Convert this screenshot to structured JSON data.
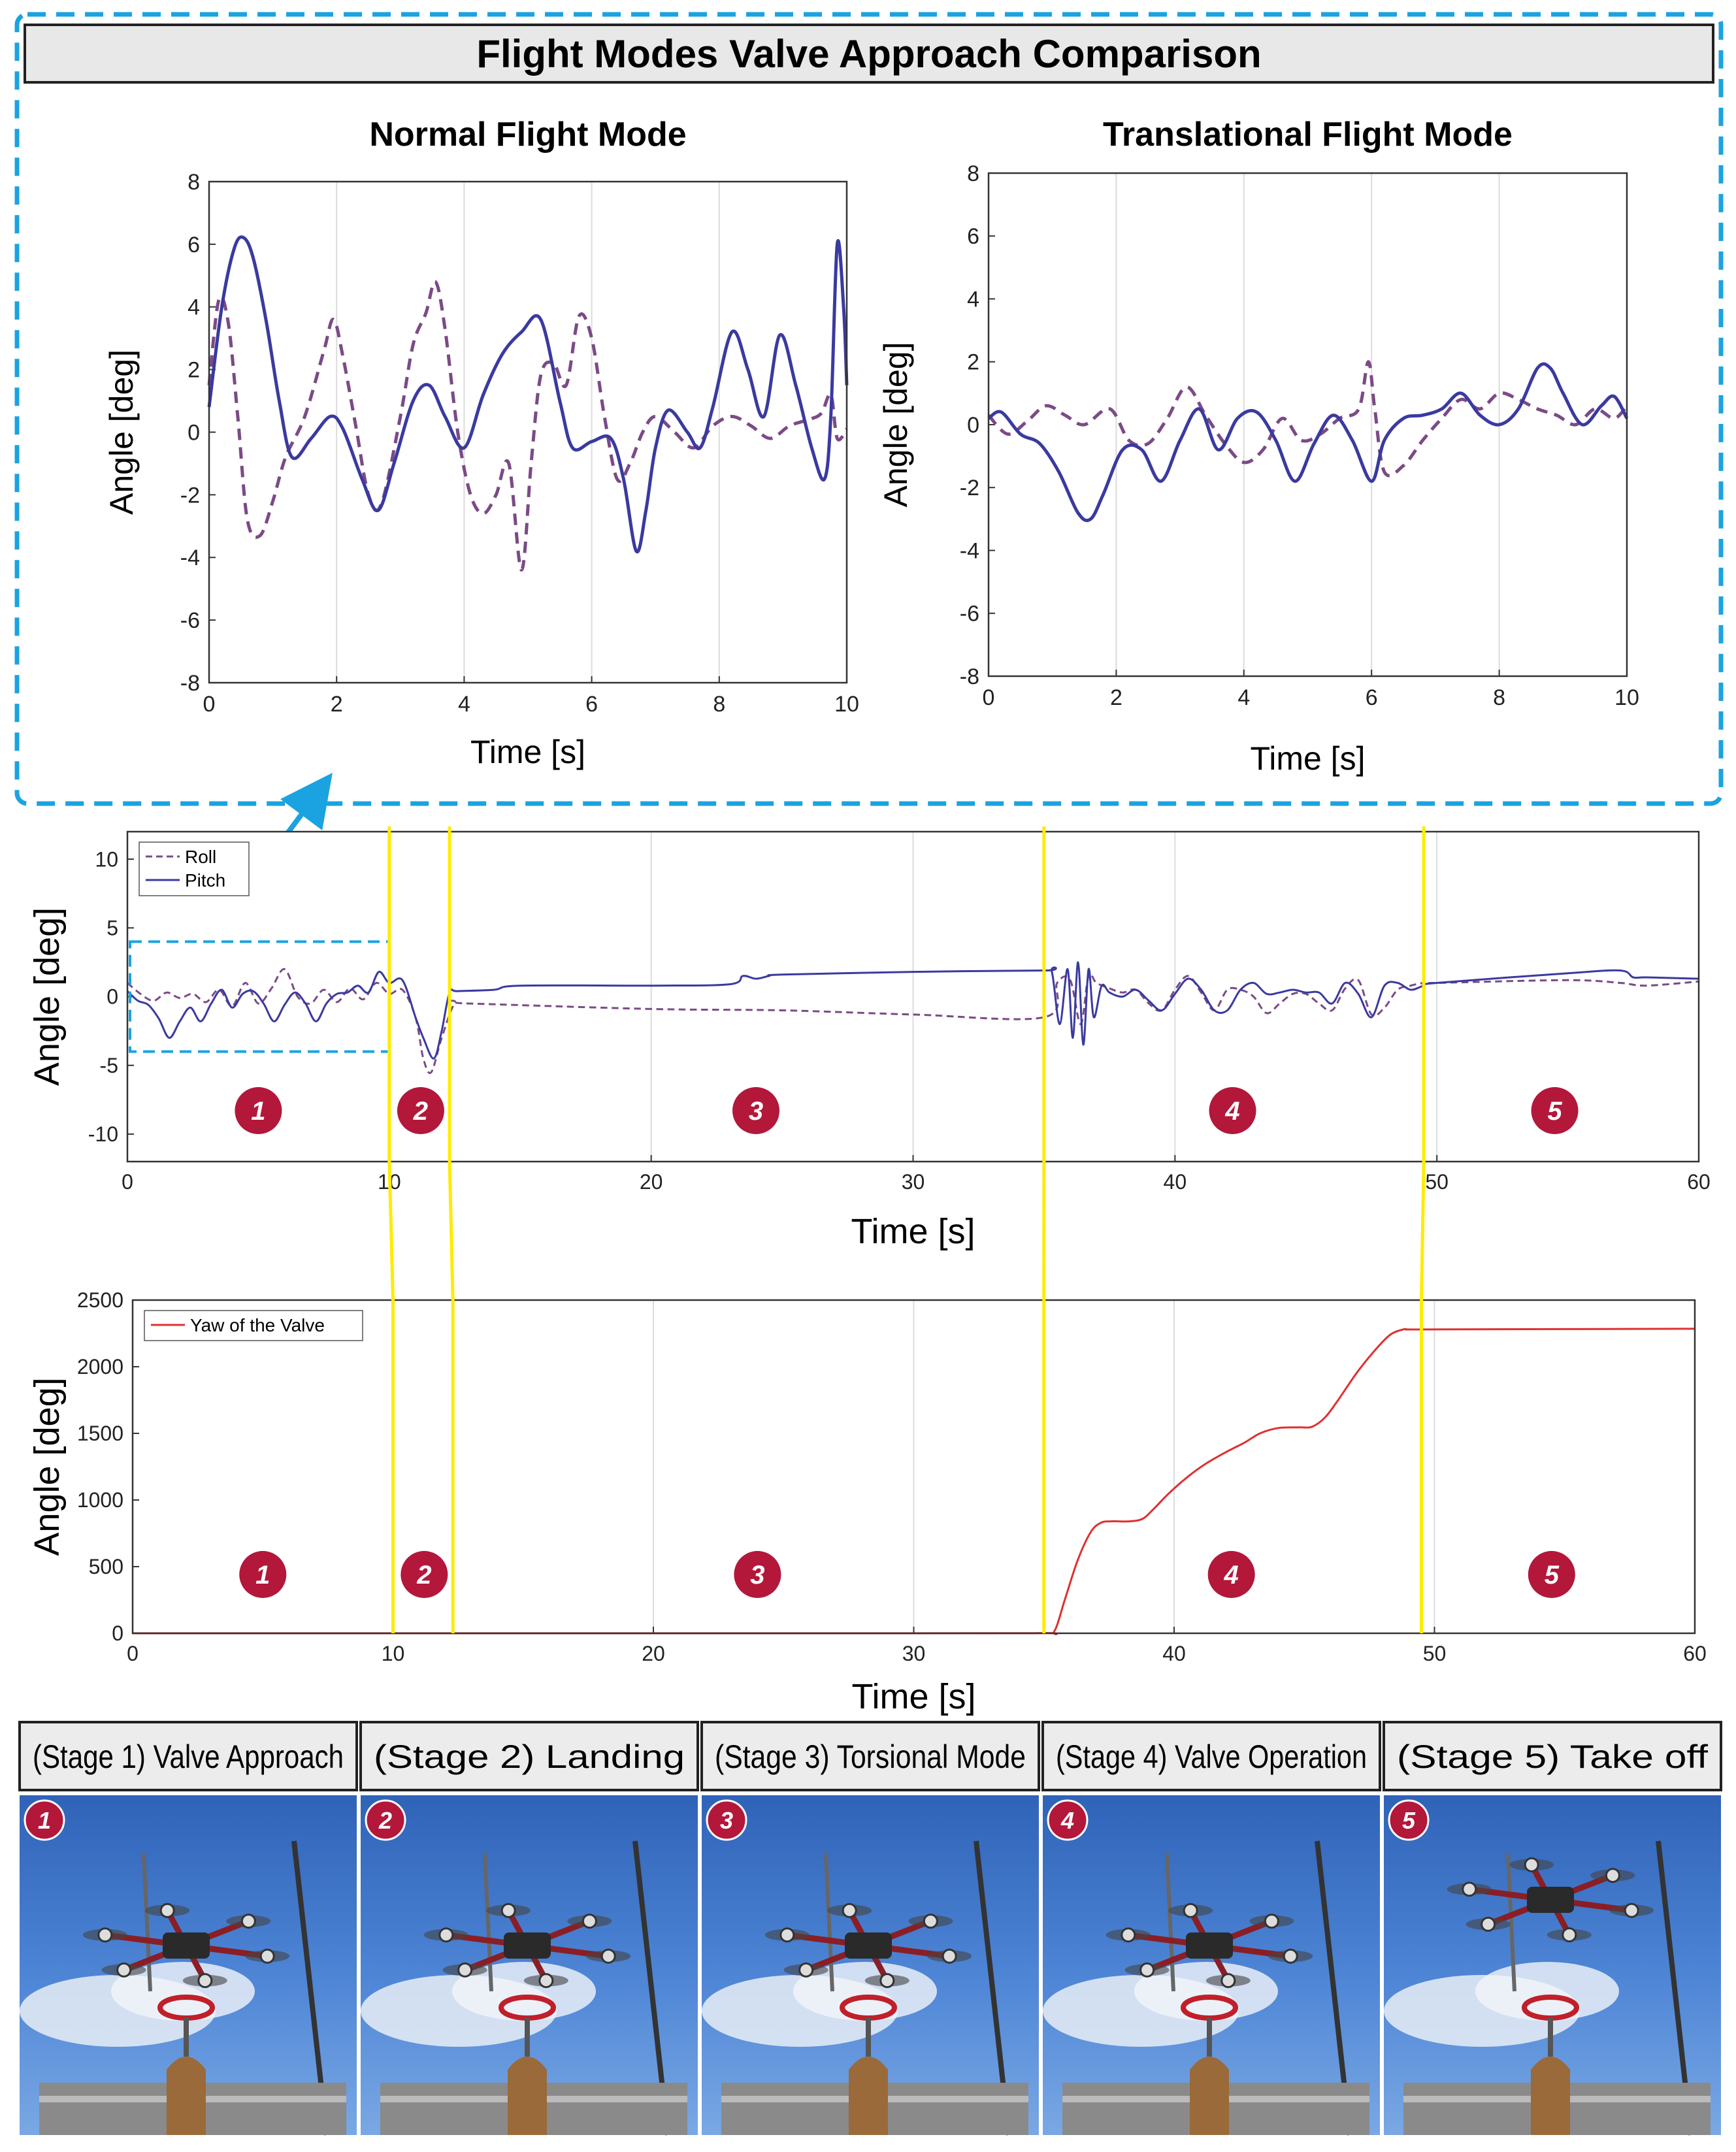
{
  "header": {
    "title": "Flight Modes Valve Approach Comparison"
  },
  "colors": {
    "roll": "#7b4a86",
    "pitch": "#3a3aa0",
    "yaw": "#e03030",
    "stage_line": "#ffeb00",
    "badge": "#b3173a",
    "callout": "#1aa3e0"
  },
  "chart_data": [
    {
      "id": "normal",
      "type": "line",
      "title": "Normal Flight Mode",
      "xlabel": "Time [s]",
      "ylabel": "Angle [deg]",
      "xlim": [
        0,
        10
      ],
      "ylim": [
        -8,
        8
      ],
      "xticks": [
        "0",
        "2",
        "4",
        "6",
        "8",
        "10"
      ],
      "yticks": [
        "-8",
        "-6",
        "-4",
        "-2",
        "0",
        "2",
        "4",
        "6",
        "8"
      ],
      "grid": "vertical",
      "series": [
        {
          "name": "Roll",
          "style": "dashed",
          "x": [
            0,
            0.15,
            0.3,
            0.45,
            0.6,
            0.8,
            1.0,
            1.2,
            1.5,
            1.8,
            1.95,
            2.1,
            2.3,
            2.5,
            2.7,
            3.0,
            3.2,
            3.4,
            3.55,
            3.7,
            3.9,
            4.1,
            4.3,
            4.5,
            4.7,
            4.9,
            5.05,
            5.2,
            5.4,
            5.6,
            5.8,
            6.0,
            6.2,
            6.4,
            6.6,
            6.8,
            7.0,
            7.3,
            7.6,
            7.9,
            8.2,
            8.5,
            8.8,
            9.1,
            9.4,
            9.6,
            9.75,
            9.85,
            10
          ],
          "y": [
            1.5,
            4.2,
            3.5,
            0.5,
            -2.8,
            -3.3,
            -2.2,
            -0.8,
            0.5,
            2.6,
            3.6,
            2.4,
            0.2,
            -2.0,
            -2.3,
            0.5,
            2.8,
            3.8,
            4.8,
            3.3,
            0.0,
            -2.0,
            -2.6,
            -2.0,
            -1.0,
            -4.4,
            -1.0,
            1.8,
            2.2,
            1.5,
            3.7,
            3.0,
            0.5,
            -1.5,
            -1.0,
            0.0,
            0.5,
            0.0,
            -0.5,
            0.2,
            0.5,
            0.2,
            -0.2,
            0.2,
            0.4,
            0.6,
            1.2,
            -0.2,
            0.1
          ]
        },
        {
          "name": "Pitch",
          "style": "solid",
          "x": [
            0,
            0.2,
            0.4,
            0.55,
            0.7,
            0.9,
            1.1,
            1.3,
            1.6,
            1.9,
            2.1,
            2.4,
            2.65,
            2.9,
            3.2,
            3.45,
            3.7,
            4.0,
            4.3,
            4.6,
            4.9,
            5.2,
            5.5,
            5.7,
            6.0,
            6.3,
            6.5,
            6.7,
            6.85,
            7.0,
            7.2,
            7.5,
            7.7,
            7.9,
            8.2,
            8.45,
            8.7,
            8.95,
            9.2,
            9.45,
            9.65,
            9.75,
            9.85,
            9.95,
            10
          ],
          "y": [
            0.8,
            4.0,
            5.9,
            6.2,
            5.5,
            3.5,
            1.0,
            -0.8,
            -0.2,
            0.5,
            0.1,
            -1.5,
            -2.5,
            -1.0,
            1.0,
            1.5,
            0.5,
            -0.5,
            1.2,
            2.5,
            3.2,
            3.6,
            1.0,
            -0.5,
            -0.3,
            -0.2,
            -1.5,
            -3.8,
            -2.5,
            -0.5,
            0.7,
            0.0,
            -0.5,
            0.8,
            3.2,
            2.0,
            0.5,
            3.1,
            1.5,
            -0.5,
            -1.5,
            0.5,
            6.0,
            4.0,
            1.5
          ]
        }
      ]
    },
    {
      "id": "translational",
      "type": "line",
      "title": "Translational Flight Mode",
      "xlabel": "Time [s]",
      "ylabel": "Angle [deg]",
      "xlim": [
        0,
        10
      ],
      "ylim": [
        -8,
        8
      ],
      "xticks": [
        "0",
        "2",
        "4",
        "6",
        "8",
        "10"
      ],
      "yticks": [
        "-8",
        "-6",
        "-4",
        "-2",
        "0",
        "2",
        "4",
        "6",
        "8"
      ],
      "grid": "vertical",
      "series": [
        {
          "name": "Roll",
          "style": "dashed",
          "x": [
            0,
            0.3,
            0.6,
            0.9,
            1.2,
            1.5,
            1.9,
            2.2,
            2.5,
            2.8,
            3.1,
            3.4,
            3.7,
            4.0,
            4.3,
            4.6,
            4.9,
            5.2,
            5.5,
            5.8,
            5.95,
            6.05,
            6.2,
            6.5,
            6.8,
            7.1,
            7.4,
            7.7,
            8.0,
            8.3,
            8.6,
            8.9,
            9.2,
            9.5,
            9.8,
            10
          ],
          "y": [
            0.3,
            -0.3,
            0.1,
            0.6,
            0.3,
            0.0,
            0.5,
            -0.5,
            -0.6,
            0.2,
            1.2,
            0.3,
            -0.6,
            -1.2,
            -0.8,
            0.2,
            -0.5,
            -0.3,
            0.2,
            0.5,
            2.0,
            0.5,
            -1.5,
            -1.3,
            -0.5,
            0.2,
            0.8,
            0.5,
            1.0,
            0.8,
            0.5,
            0.3,
            0.0,
            0.5,
            0.2,
            0.6
          ]
        },
        {
          "name": "Pitch",
          "style": "solid",
          "x": [
            0,
            0.2,
            0.5,
            0.8,
            1.1,
            1.4,
            1.6,
            1.8,
            2.1,
            2.4,
            2.7,
            3.0,
            3.3,
            3.6,
            3.9,
            4.2,
            4.5,
            4.8,
            5.1,
            5.4,
            5.7,
            6.0,
            6.2,
            6.5,
            6.8,
            7.1,
            7.4,
            7.7,
            8.0,
            8.3,
            8.6,
            8.8,
            9.0,
            9.3,
            9.6,
            9.8,
            10
          ],
          "y": [
            0.2,
            0.4,
            -0.3,
            -0.6,
            -1.5,
            -2.8,
            -3.0,
            -2.2,
            -0.8,
            -0.8,
            -1.8,
            -0.5,
            0.5,
            -0.8,
            0.2,
            0.4,
            -0.5,
            -1.8,
            -0.6,
            0.3,
            -0.5,
            -1.8,
            -0.5,
            0.2,
            0.3,
            0.5,
            1.0,
            0.3,
            0.0,
            0.5,
            1.8,
            1.8,
            1.0,
            0.0,
            0.6,
            0.9,
            0.2
          ]
        }
      ]
    },
    {
      "id": "rollpitch",
      "type": "line",
      "xlabel": "Time [s]",
      "ylabel": "Angle [deg]",
      "xlim": [
        0,
        60
      ],
      "ylim": [
        -12,
        12
      ],
      "xticks": [
        "0",
        "10",
        "20",
        "30",
        "40",
        "50",
        "60"
      ],
      "yticks": [
        "-10",
        "-5",
        "0",
        "5",
        "10"
      ],
      "grid": "vertical",
      "legend": "top-left",
      "series": [
        {
          "name": "Roll",
          "style": "dashed",
          "x": [
            0,
            0.5,
            1.0,
            1.5,
            2.0,
            2.5,
            3.0,
            3.5,
            4.0,
            4.5,
            5.0,
            5.5,
            6.0,
            6.5,
            7.0,
            7.5,
            8.0,
            8.5,
            9.0,
            9.5,
            10.0,
            10.5,
            11.0,
            11.3,
            11.6,
            12.0,
            12.5,
            13,
            20,
            25,
            30,
            35,
            35.5,
            36,
            36.4,
            36.7,
            37,
            37.5,
            38,
            38.5,
            39,
            39.5,
            40,
            40.5,
            41,
            41.5,
            42,
            42.5,
            43,
            43.5,
            44,
            44.5,
            45,
            45.5,
            46,
            46.5,
            47,
            47.5,
            48,
            48.5,
            49,
            49.5,
            50,
            55,
            57,
            58,
            60
          ],
          "y": [
            1.0,
            0.2,
            -0.3,
            0.3,
            -0.1,
            0.2,
            -0.4,
            0.5,
            -0.7,
            1.0,
            -0.5,
            0.6,
            2.0,
            0.0,
            -0.5,
            0.5,
            -0.4,
            0.6,
            -0.2,
            1.0,
            0.2,
            0.5,
            -1.5,
            -4.5,
            -5.5,
            -3.0,
            -0.5,
            -0.5,
            -0.9,
            -1.0,
            -1.3,
            -1.5,
            1.0,
            1.2,
            -2.0,
            1.5,
            1.0,
            0.6,
            0.3,
            0.5,
            -0.5,
            -1.0,
            0.5,
            1.5,
            0.3,
            -1.0,
            0.5,
            0.5,
            0.0,
            -1.2,
            -0.5,
            0.2,
            0.2,
            -0.5,
            -1.0,
            0.6,
            1.2,
            -1.3,
            -0.8,
            0.5,
            0.8,
            1.0,
            1.0,
            1.2,
            1.0,
            0.8,
            1.1
          ]
        },
        {
          "name": "Pitch",
          "style": "solid",
          "x": [
            0,
            0.4,
            0.8,
            1.2,
            1.6,
            2.0,
            2.4,
            2.8,
            3.2,
            3.6,
            4.0,
            4.4,
            4.8,
            5.2,
            5.6,
            6.0,
            6.4,
            6.8,
            7.2,
            7.6,
            8.0,
            8.4,
            8.8,
            9.2,
            9.6,
            10.0,
            10.5,
            11.0,
            11.3,
            11.7,
            12.0,
            12.3,
            12.6,
            14,
            15,
            20,
            23,
            23.5,
            24,
            24.5,
            25,
            30,
            35,
            35.3,
            35.6,
            35.9,
            36.1,
            36.3,
            36.5,
            36.7,
            36.9,
            37.2,
            37.5,
            38,
            38.5,
            39,
            39.5,
            40,
            40.5,
            41,
            41.5,
            42,
            42.5,
            43,
            43.5,
            44,
            44.5,
            45,
            45.5,
            46,
            46.5,
            47,
            47.5,
            48,
            48.5,
            49,
            49.5,
            50,
            55,
            57,
            57.5,
            58,
            60
          ],
          "y": [
            0.4,
            -0.3,
            -0.6,
            -1.6,
            -3.0,
            -1.8,
            -0.8,
            -1.8,
            -0.5,
            0.5,
            -0.8,
            0.2,
            0.4,
            -0.5,
            -1.8,
            -0.6,
            0.3,
            -0.5,
            -1.8,
            -0.5,
            0.2,
            0.3,
            0.8,
            0.3,
            1.8,
            1.0,
            1.2,
            -1.5,
            -3.0,
            -4.5,
            -2.5,
            0.3,
            0.4,
            0.5,
            0.8,
            0.8,
            0.9,
            1.5,
            1.3,
            1.5,
            1.6,
            1.8,
            1.9,
            1.8,
            -2.0,
            2.0,
            -3.0,
            2.5,
            -3.5,
            2.0,
            -1.5,
            0.8,
            0.3,
            0.0,
            0.5,
            -0.3,
            -1.0,
            0.2,
            1.3,
            0.5,
            -1.0,
            -1.0,
            0.5,
            1.0,
            0.2,
            0.3,
            0.5,
            0.3,
            0.3,
            -0.5,
            1.0,
            0.2,
            -1.5,
            0.8,
            1.0,
            0.5,
            0.8,
            1.0,
            1.7,
            1.9,
            1.4,
            1.4,
            1.3
          ]
        }
      ]
    },
    {
      "id": "yaw",
      "type": "line",
      "xlabel": "Time [s]",
      "ylabel": "Angle [deg]",
      "xlim": [
        0,
        60
      ],
      "ylim": [
        0,
        2500
      ],
      "xticks": [
        "0",
        "10",
        "20",
        "30",
        "40",
        "50",
        "60"
      ],
      "yticks": [
        "0",
        "500",
        "1000",
        "1500",
        "2000",
        "2500"
      ],
      "grid": "vertical",
      "legend": "top-left",
      "series": [
        {
          "name": "Yaw of the Valve",
          "style": "solid",
          "x": [
            0,
            30,
            35,
            35.4,
            35.8,
            36.3,
            36.8,
            37.2,
            37.6,
            38.3,
            38.8,
            39.2,
            39.8,
            40.5,
            41.2,
            42,
            42.7,
            43.3,
            44,
            44.8,
            45.3,
            45.8,
            46.3,
            47,
            47.7,
            48.3,
            48.8,
            49,
            50,
            60
          ],
          "y": [
            0,
            0,
            2,
            15,
            250,
            550,
            760,
            830,
            840,
            840,
            860,
            930,
            1050,
            1170,
            1270,
            1360,
            1430,
            1500,
            1540,
            1545,
            1550,
            1620,
            1750,
            1950,
            2120,
            2240,
            2280,
            2280,
            2280,
            2285
          ]
        }
      ]
    }
  ],
  "stage_markers": {
    "lines_x": [
      10,
      12.3,
      35,
      49.5
    ],
    "badges_x": [
      5,
      11.2,
      24,
      42.2,
      54.5
    ],
    "badge_labels": [
      "1",
      "2",
      "3",
      "4",
      "5"
    ]
  },
  "stages": [
    {
      "label": "(Stage 1) Valve  Approach",
      "badge": "1"
    },
    {
      "label": "(Stage 2) Landing",
      "badge": "2"
    },
    {
      "label": "(Stage 3) Torsional Mode",
      "badge": "3"
    },
    {
      "label": "(Stage 4) Valve Operation",
      "badge": "4"
    },
    {
      "label": "(Stage 5) Take off",
      "badge": "5"
    }
  ]
}
